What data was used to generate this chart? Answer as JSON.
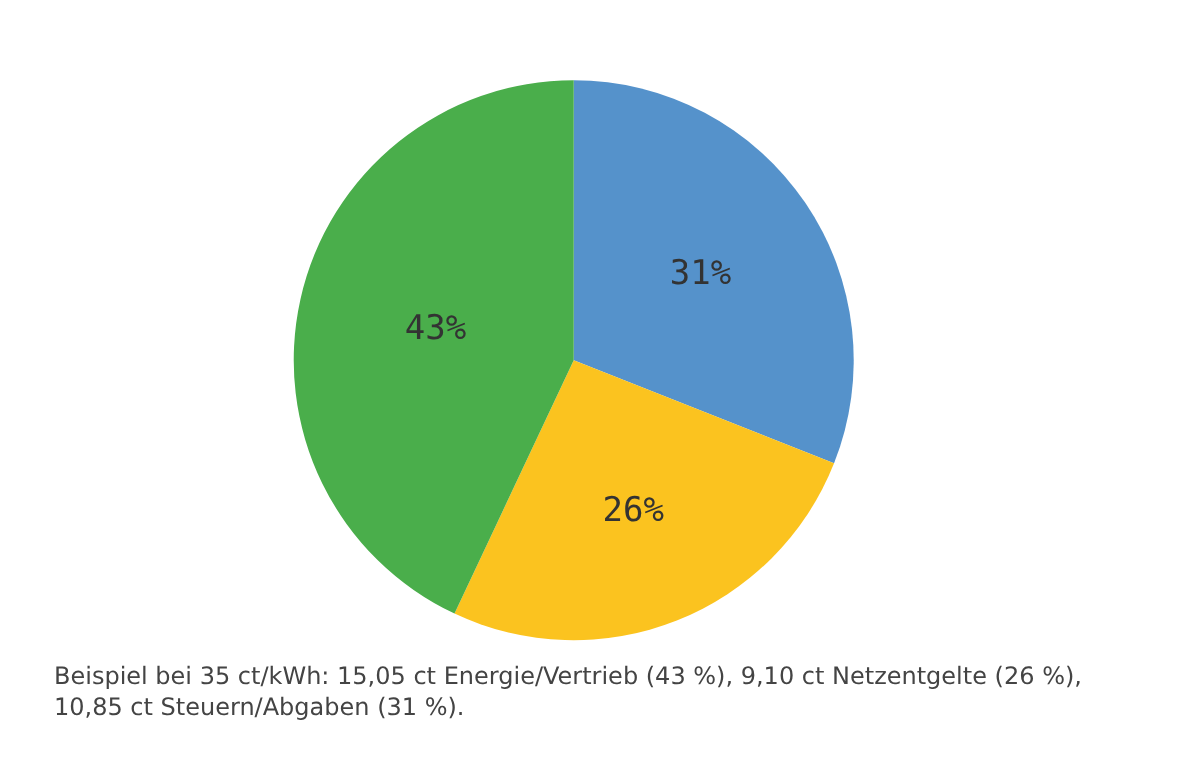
{
  "chart_data": {
    "type": "pie",
    "categories": [
      null,
      null,
      null
    ],
    "values": [
      31,
      26,
      43
    ],
    "colors": [
      "#5592cb",
      "#fbc31f",
      "#4aae4b"
    ],
    "value_labels": [
      "31%",
      "26%",
      "43%"
    ],
    "legend": false,
    "annotations": [
      "Beispiel bei 35 ct/kWh: 15,05 ct Energie/Vertrieb (43 %), 9,10 ct Netzentgelte (26 %),\n10,85 ct Steuern/Abgaben (31 %)."
    ]
  }
}
